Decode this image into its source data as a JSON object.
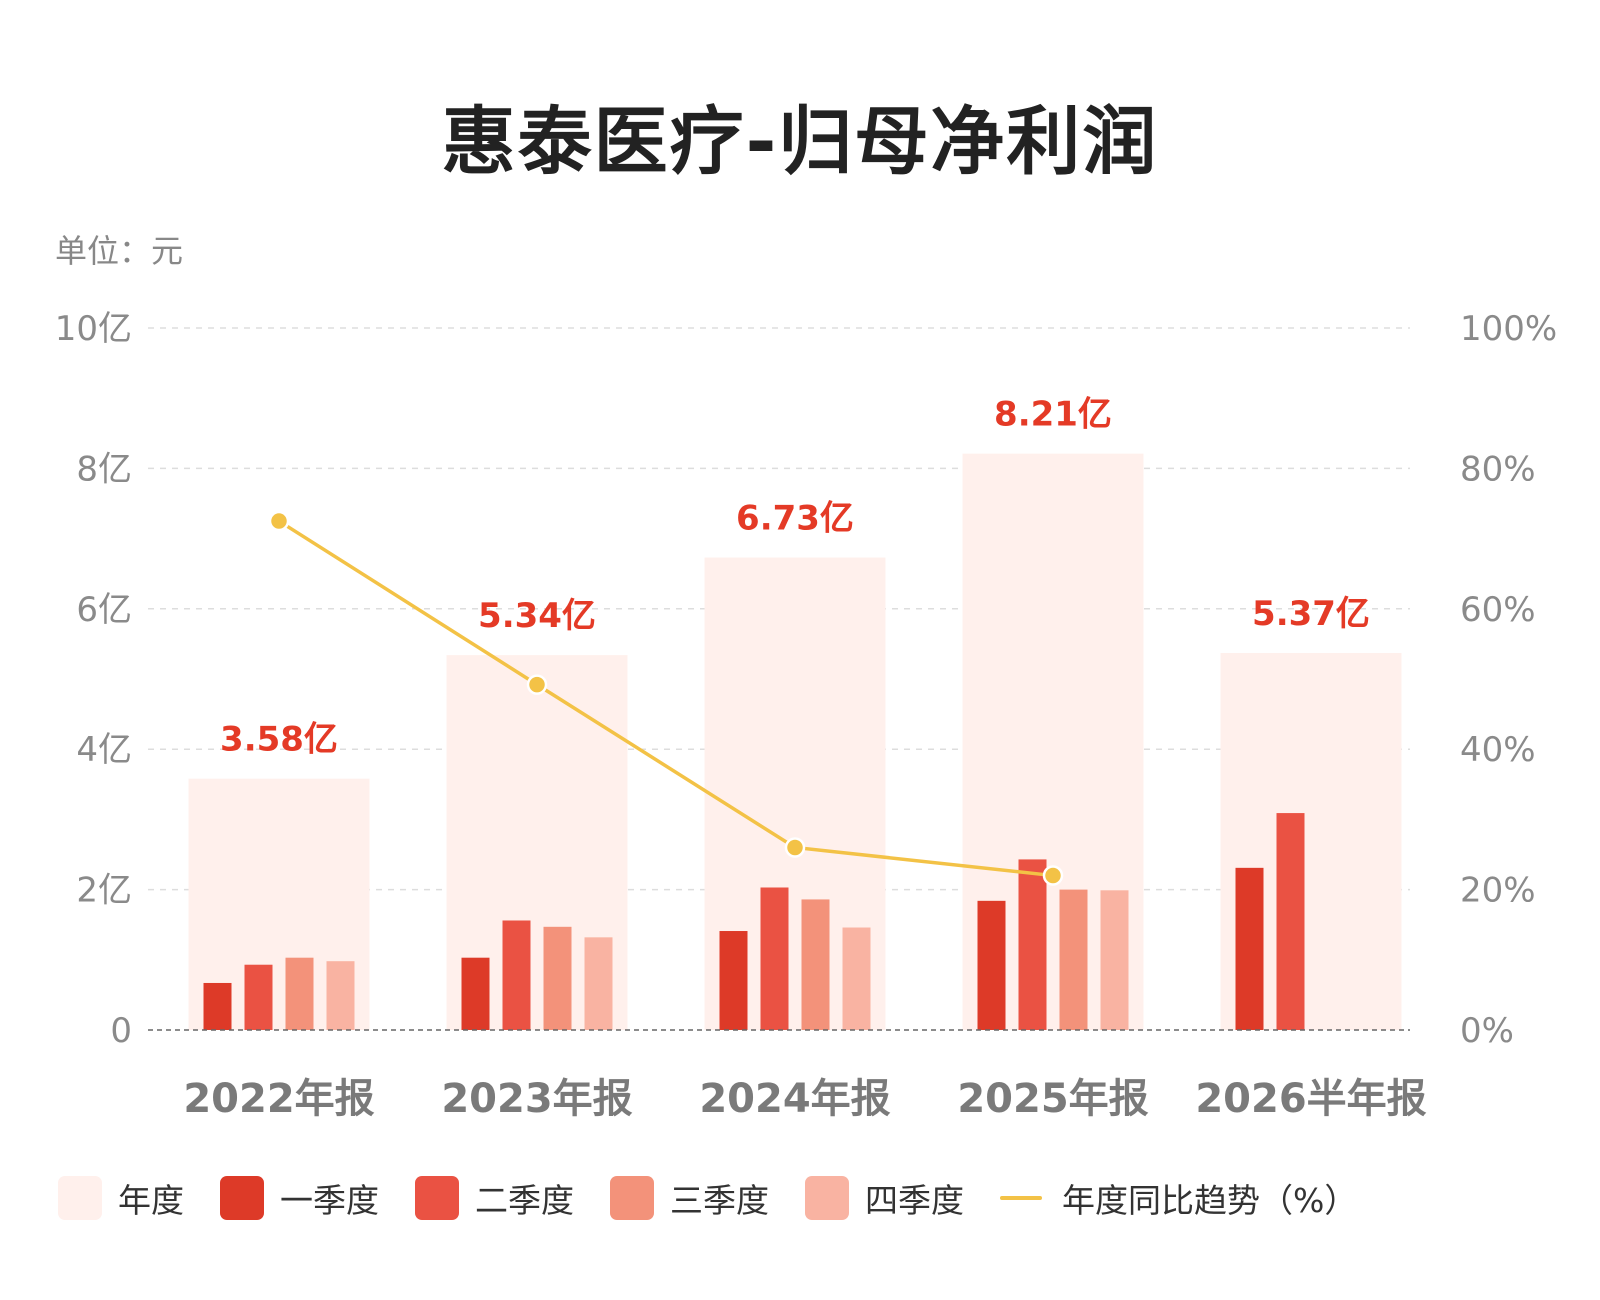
{
  "title": "惠泰医疗-归母净利润",
  "unit_label": "单位：元",
  "colors": {
    "annual": "#fff0ec",
    "q1": "#dd3a28",
    "q2": "#ea5243",
    "q3": "#f3927a",
    "q4": "#f9b3a2",
    "trend": "#f3c246",
    "value_label": "#e43a26",
    "axis_text": "#8a8a8a",
    "category_text": "#7a7a7a"
  },
  "legend": [
    {
      "key": "annual",
      "label": "年度",
      "kind": "box",
      "color": "#fff0ec"
    },
    {
      "key": "q1",
      "label": "一季度",
      "kind": "box",
      "color": "#dd3a28"
    },
    {
      "key": "q2",
      "label": "二季度",
      "kind": "box",
      "color": "#ea5243"
    },
    {
      "key": "q3",
      "label": "三季度",
      "kind": "box",
      "color": "#f3927a"
    },
    {
      "key": "q4",
      "label": "四季度",
      "kind": "box",
      "color": "#f9b3a2"
    },
    {
      "key": "trend",
      "label": "年度同比趋势（%）",
      "kind": "line",
      "color": "#f3c246"
    }
  ],
  "chart_data": {
    "type": "bar",
    "title": "惠泰医疗-归母净利润",
    "unit": "元",
    "categories": [
      "2022年报",
      "2023年报",
      "2024年报",
      "2025年报",
      "2026半年报"
    ],
    "y_left": {
      "min": 0,
      "max": 10,
      "ticks": [
        0,
        2,
        4,
        6,
        8,
        10
      ],
      "tick_labels": [
        "0",
        "2亿",
        "4亿",
        "6亿",
        "8亿",
        "10亿"
      ]
    },
    "y_right": {
      "min": 0,
      "max": 100,
      "ticks": [
        0,
        20,
        40,
        60,
        80,
        100
      ],
      "tick_labels": [
        "0%",
        "20%",
        "40%",
        "60%",
        "80%",
        "100%"
      ]
    },
    "grid": true,
    "legend_position": "bottom",
    "annual": {
      "name": "年度",
      "values": [
        3.58,
        5.34,
        6.73,
        8.21,
        5.37
      ],
      "labels": [
        "3.58亿",
        "5.34亿",
        "6.73亿",
        "8.21亿",
        "5.37亿"
      ]
    },
    "series": [
      {
        "name": "一季度",
        "values": [
          0.67,
          1.03,
          1.41,
          1.84,
          2.31
        ]
      },
      {
        "name": "二季度",
        "values": [
          0.93,
          1.56,
          2.03,
          2.43,
          3.09
        ]
      },
      {
        "name": "三季度",
        "values": [
          1.03,
          1.47,
          1.86,
          2.0,
          null
        ]
      },
      {
        "name": "四季度",
        "values": [
          0.98,
          1.32,
          1.46,
          1.99,
          null
        ]
      }
    ],
    "trend": {
      "name": "年度同比趋势（%）",
      "axis": "right",
      "values": [
        72.5,
        49.2,
        26.0,
        22.0,
        null
      ]
    }
  }
}
